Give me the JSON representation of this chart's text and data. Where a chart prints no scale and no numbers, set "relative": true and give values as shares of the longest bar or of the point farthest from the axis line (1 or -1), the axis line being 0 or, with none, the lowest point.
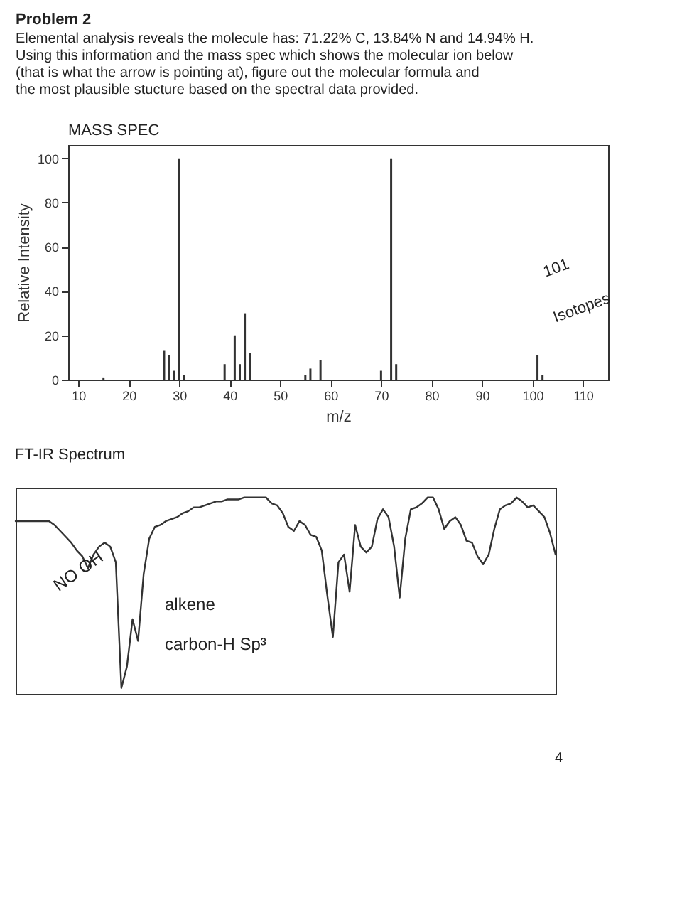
{
  "chart_data": [
    {
      "type": "bar",
      "title": "Problem 2",
      "subtitle": "Elemental analysis reveals the molecule has:  71.22% C, 13.84% N and 14.94% H. Using this information and the mass spec which shows the molecular ion below (that is what the arrow is pointing at), figure out the molecular formula and the most plausible stucture based on the spectral data provided.",
      "xlabel": "m/z",
      "ylabel": "Relative Intensity",
      "x": [
        15,
        27,
        28,
        29,
        30,
        31,
        39,
        41,
        42,
        43,
        44,
        55,
        56,
        58,
        70,
        72,
        73,
        101,
        102
      ],
      "values": [
        1,
        13,
        11,
        4,
        100,
        2,
        7,
        20,
        7,
        30,
        12,
        2,
        5,
        9,
        4,
        100,
        7,
        11,
        2
      ],
      "color": "#333333",
      "xlim": [
        8,
        115
      ],
      "ylim": [
        0,
        106
      ],
      "xticks": [
        10,
        20,
        30,
        40,
        50,
        60,
        70,
        80,
        90,
        100,
        110
      ],
      "yticks": [
        0,
        20,
        40,
        60,
        80,
        100
      ],
      "grid": false,
      "annotations": [
        "MASS SPEC",
        "101",
        "Isotopes"
      ]
    },
    {
      "type": "line",
      "title": "FT-IR Spectrum",
      "relative": true,
      "grid": false,
      "categories": [
        null,
        null,
        null,
        null,
        null,
        null,
        null,
        null,
        null,
        null,
        null,
        null,
        null,
        null,
        null,
        null,
        null,
        null,
        null,
        null,
        null,
        null,
        null,
        null,
        null,
        null,
        null,
        null,
        null,
        null,
        null,
        null,
        null,
        null,
        null,
        null,
        null,
        null,
        null,
        null,
        null,
        null,
        null,
        null,
        null,
        null,
        null,
        null,
        null,
        null,
        null,
        null,
        null,
        null,
        null,
        null,
        null,
        null,
        null,
        null,
        null,
        null,
        null,
        null,
        null,
        null,
        null,
        null,
        null,
        null,
        null,
        null,
        null,
        null,
        null,
        null,
        null,
        null,
        null,
        null,
        null,
        null,
        null,
        null,
        null,
        null,
        null,
        null,
        null,
        null,
        null,
        null,
        null,
        null,
        null,
        null,
        null,
        null
      ],
      "series": [
        {
          "color": "#333333",
          "values": [
            0.88,
            0.88,
            0.88,
            0.88,
            0.88,
            0.88,
            0.88,
            0.86,
            0.83,
            0.8,
            0.77,
            0.73,
            0.7,
            0.64,
            0.71,
            0.75,
            0.77,
            0.75,
            0.67,
            0.03,
            0.14,
            0.38,
            0.27,
            0.61,
            0.79,
            0.85,
            0.86,
            0.88,
            0.89,
            0.9,
            0.92,
            0.93,
            0.95,
            0.95,
            0.96,
            0.97,
            0.98,
            0.98,
            0.99,
            0.99,
            0.99,
            1,
            1,
            1,
            1,
            1,
            0.97,
            0.96,
            0.92,
            0.85,
            0.83,
            0.88,
            0.86,
            0.81,
            0.8,
            0.73,
            0.5,
            0.29,
            0.67,
            0.71,
            0.52,
            0.86,
            0.75,
            0.72,
            0.75,
            0.89,
            0.94,
            0.9,
            0.75,
            0.49,
            0.79,
            0.94,
            0.95,
            0.97,
            1,
            1,
            0.94,
            0.84,
            0.88,
            0.9,
            0.86,
            0.78,
            0.77,
            0.7,
            0.66,
            0.71,
            0.84,
            0.94,
            0.96,
            0.97,
            1,
            0.98,
            0.95,
            0.96,
            0.93,
            0.9,
            0.82,
            0.71
          ]
        }
      ],
      "annotations": [
        "NO OH",
        "alkene",
        "carbon-H Sp³",
        "4"
      ]
    }
  ]
}
